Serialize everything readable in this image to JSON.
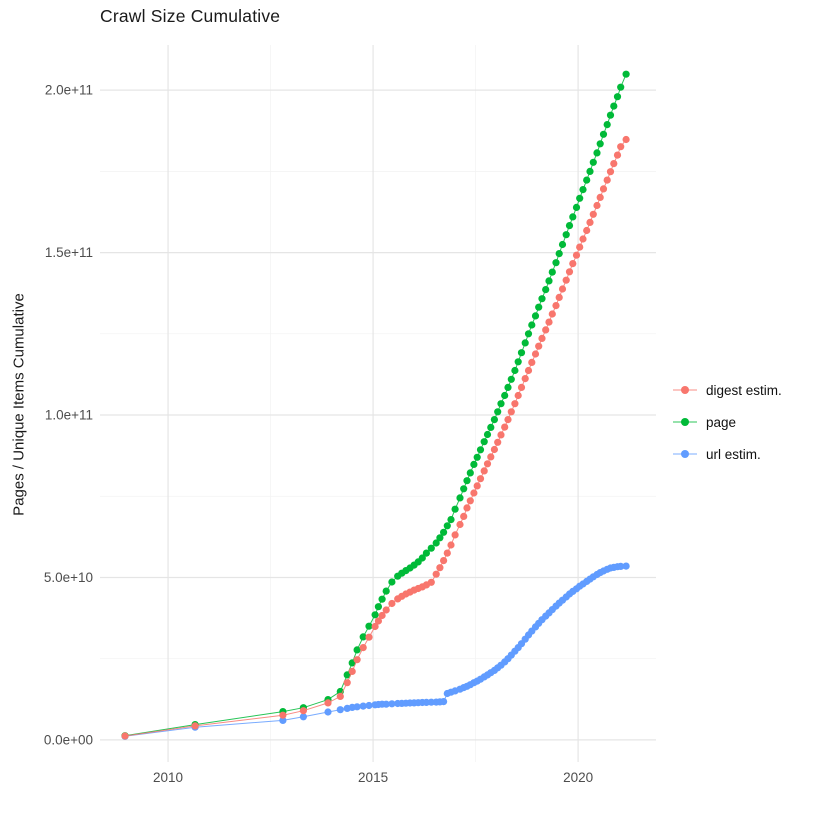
{
  "page": {
    "title": "Crawl Size Cumulative"
  },
  "colors": {
    "background": "#ffffff",
    "title_text": "#1a1a1a",
    "tick_label": "#4d4d4d",
    "grid_major": "#e5e5e5",
    "grid_minor": "#f2f2f2",
    "digest_estim": "#F8766D",
    "page_series": "#00BA38",
    "url_estim": "#619CFF"
  },
  "chart_data": {
    "type": "scatter",
    "title": "Crawl Size Cumulative",
    "xlabel": "",
    "ylabel": "Pages / Unique Items Cumulative",
    "value_unit": "items, stored here in billions (1e9); y axis shown in scientific notation",
    "grid": "on",
    "legend_position": "right",
    "xlim": [
      2008.34,
      2021.9
    ],
    "ylim_e9": [
      -6.8,
      213.9
    ],
    "x_major_ticks": [
      {
        "value": 2010,
        "label": "2010"
      },
      {
        "value": 2015,
        "label": "2015"
      },
      {
        "value": 2020,
        "label": "2020"
      }
    ],
    "x_minor_ticks": [
      2012.5,
      2017.5
    ],
    "y_major_ticks": [
      {
        "value_e9": 0,
        "label": "0.0e+00"
      },
      {
        "value_e9": 50,
        "label": "5.0e+10"
      },
      {
        "value_e9": 100,
        "label": "1.0e+11"
      },
      {
        "value_e9": 150,
        "label": "1.5e+11"
      },
      {
        "value_e9": 200,
        "label": "2.0e+11"
      }
    ],
    "y_minor_ticks_e9": [
      25,
      75,
      125,
      175
    ],
    "draw_order": [
      2,
      1,
      0
    ],
    "series": [
      {
        "name": "digest estim.",
        "color": "#F8766D",
        "points": [
          [
            2008.95,
            1.2
          ],
          [
            2010.66,
            4.3
          ],
          [
            2012.8,
            7.6
          ],
          [
            2013.3,
            9.0
          ],
          [
            2013.9,
            11.4
          ],
          [
            2014.2,
            13.4
          ],
          [
            2014.37,
            17.6
          ],
          [
            2014.49,
            21.1
          ],
          [
            2014.61,
            24.7
          ],
          [
            2014.76,
            28.4
          ],
          [
            2014.9,
            31.6
          ],
          [
            2015.05,
            34.9
          ],
          [
            2015.13,
            36.6
          ],
          [
            2015.22,
            38.3
          ],
          [
            2015.32,
            40.0
          ],
          [
            2015.46,
            42.0
          ],
          [
            2015.6,
            43.4
          ],
          [
            2015.7,
            44.2
          ],
          [
            2015.8,
            44.9
          ],
          [
            2015.9,
            45.5
          ],
          [
            2016.0,
            46.1
          ],
          [
            2016.1,
            46.6
          ],
          [
            2016.2,
            47.1
          ],
          [
            2016.3,
            47.7
          ],
          [
            2016.42,
            48.5
          ],
          [
            2016.54,
            51.0
          ],
          [
            2016.63,
            53.0
          ],
          [
            2016.72,
            55.2
          ],
          [
            2016.81,
            57.5
          ],
          [
            2016.9,
            60.0
          ],
          [
            2017.0,
            63.1
          ],
          [
            2017.12,
            66.3
          ],
          [
            2017.21,
            68.8
          ],
          [
            2017.29,
            71.4
          ],
          [
            2017.37,
            73.6
          ],
          [
            2017.46,
            76.0
          ],
          [
            2017.54,
            78.2
          ],
          [
            2017.62,
            80.4
          ],
          [
            2017.71,
            82.8
          ],
          [
            2017.79,
            85.0
          ],
          [
            2017.87,
            87.1
          ],
          [
            2017.96,
            89.4
          ],
          [
            2018.04,
            91.6
          ],
          [
            2018.12,
            93.9
          ],
          [
            2018.21,
            96.3
          ],
          [
            2018.29,
            98.6
          ],
          [
            2018.37,
            101.0
          ],
          [
            2018.46,
            103.5
          ],
          [
            2018.54,
            106.0
          ],
          [
            2018.62,
            108.5
          ],
          [
            2018.71,
            111.2
          ],
          [
            2018.79,
            113.7
          ],
          [
            2018.87,
            116.2
          ],
          [
            2018.96,
            118.8
          ],
          [
            2019.04,
            121.2
          ],
          [
            2019.12,
            123.6
          ],
          [
            2019.21,
            126.2
          ],
          [
            2019.29,
            128.6
          ],
          [
            2019.37,
            131.1
          ],
          [
            2019.46,
            133.7
          ],
          [
            2019.54,
            136.2
          ],
          [
            2019.62,
            138.8
          ],
          [
            2019.71,
            141.5
          ],
          [
            2019.79,
            144.1
          ],
          [
            2019.87,
            146.6
          ],
          [
            2019.96,
            149.2
          ],
          [
            2020.04,
            151.7
          ],
          [
            2020.12,
            154.2
          ],
          [
            2020.21,
            156.8
          ],
          [
            2020.29,
            159.3
          ],
          [
            2020.37,
            161.8
          ],
          [
            2020.46,
            164.5
          ],
          [
            2020.54,
            167.0
          ],
          [
            2020.62,
            169.6
          ],
          [
            2020.71,
            172.3
          ],
          [
            2020.79,
            174.9
          ],
          [
            2020.87,
            177.4
          ],
          [
            2020.96,
            180.0
          ],
          [
            2021.04,
            182.6
          ],
          [
            2021.17,
            184.8
          ]
        ]
      },
      {
        "name": "page",
        "color": "#00BA38",
        "points": [
          [
            2008.95,
            1.3
          ],
          [
            2010.66,
            4.7
          ],
          [
            2012.8,
            8.7
          ],
          [
            2013.3,
            9.9
          ],
          [
            2013.9,
            12.4
          ],
          [
            2014.2,
            14.9
          ],
          [
            2014.37,
            20.0
          ],
          [
            2014.49,
            23.7
          ],
          [
            2014.61,
            27.7
          ],
          [
            2014.76,
            31.7
          ],
          [
            2014.9,
            35.0
          ],
          [
            2015.05,
            38.5
          ],
          [
            2015.13,
            41.0
          ],
          [
            2015.22,
            43.3
          ],
          [
            2015.32,
            45.8
          ],
          [
            2015.46,
            48.6
          ],
          [
            2015.6,
            50.4
          ],
          [
            2015.7,
            51.3
          ],
          [
            2015.8,
            52.1
          ],
          [
            2015.9,
            52.9
          ],
          [
            2016.0,
            53.8
          ],
          [
            2016.1,
            54.8
          ],
          [
            2016.2,
            56.0
          ],
          [
            2016.3,
            57.5
          ],
          [
            2016.42,
            59.0
          ],
          [
            2016.54,
            60.6
          ],
          [
            2016.63,
            62.2
          ],
          [
            2016.72,
            63.9
          ],
          [
            2016.81,
            65.9
          ],
          [
            2016.9,
            67.8
          ],
          [
            2017.0,
            71.0
          ],
          [
            2017.12,
            74.5
          ],
          [
            2017.21,
            77.3
          ],
          [
            2017.29,
            79.8
          ],
          [
            2017.37,
            82.2
          ],
          [
            2017.46,
            84.8
          ],
          [
            2017.54,
            87.0
          ],
          [
            2017.62,
            89.3
          ],
          [
            2017.71,
            91.8
          ],
          [
            2017.79,
            94.0
          ],
          [
            2017.87,
            96.2
          ],
          [
            2017.96,
            98.6
          ],
          [
            2018.04,
            101.0
          ],
          [
            2018.12,
            103.5
          ],
          [
            2018.21,
            106.0
          ],
          [
            2018.29,
            108.5
          ],
          [
            2018.37,
            111.0
          ],
          [
            2018.46,
            113.7
          ],
          [
            2018.54,
            116.4
          ],
          [
            2018.62,
            119.2
          ],
          [
            2018.71,
            122.2
          ],
          [
            2018.79,
            125.0
          ],
          [
            2018.87,
            127.7
          ],
          [
            2018.96,
            130.5
          ],
          [
            2019.04,
            133.2
          ],
          [
            2019.12,
            135.8
          ],
          [
            2019.21,
            138.6
          ],
          [
            2019.29,
            141.3
          ],
          [
            2019.37,
            144.0
          ],
          [
            2019.46,
            146.9
          ],
          [
            2019.54,
            149.7
          ],
          [
            2019.62,
            152.5
          ],
          [
            2019.71,
            155.5
          ],
          [
            2019.79,
            158.3
          ],
          [
            2019.87,
            161.0
          ],
          [
            2019.96,
            163.9
          ],
          [
            2020.04,
            166.7
          ],
          [
            2020.12,
            169.4
          ],
          [
            2020.21,
            172.3
          ],
          [
            2020.29,
            175.0
          ],
          [
            2020.37,
            177.8
          ],
          [
            2020.46,
            180.7
          ],
          [
            2020.54,
            183.5
          ],
          [
            2020.62,
            186.4
          ],
          [
            2020.71,
            189.4
          ],
          [
            2020.79,
            192.3
          ],
          [
            2020.87,
            195.1
          ],
          [
            2020.96,
            198.0
          ],
          [
            2021.04,
            200.9
          ],
          [
            2021.17,
            204.9
          ]
        ]
      },
      {
        "name": "url estim.",
        "color": "#619CFF",
        "points": [
          [
            2008.95,
            1.1
          ],
          [
            2010.66,
            3.9
          ],
          [
            2012.8,
            6.0
          ],
          [
            2013.3,
            7.1
          ],
          [
            2013.9,
            8.6
          ],
          [
            2014.2,
            9.3
          ],
          [
            2014.37,
            9.7
          ],
          [
            2014.49,
            10.0
          ],
          [
            2014.61,
            10.2
          ],
          [
            2014.76,
            10.4
          ],
          [
            2014.9,
            10.6
          ],
          [
            2015.05,
            10.8
          ],
          [
            2015.13,
            10.9
          ],
          [
            2015.22,
            11.0
          ],
          [
            2015.32,
            11.0
          ],
          [
            2015.46,
            11.1
          ],
          [
            2015.6,
            11.2
          ],
          [
            2015.7,
            11.25
          ],
          [
            2015.8,
            11.3
          ],
          [
            2015.9,
            11.35
          ],
          [
            2016.0,
            11.4
          ],
          [
            2016.1,
            11.45
          ],
          [
            2016.2,
            11.5
          ],
          [
            2016.3,
            11.55
          ],
          [
            2016.42,
            11.6
          ],
          [
            2016.54,
            11.65
          ],
          [
            2016.63,
            11.7
          ],
          [
            2016.72,
            11.8
          ],
          [
            2016.81,
            14.3
          ],
          [
            2016.9,
            14.7
          ],
          [
            2017.0,
            15.1
          ],
          [
            2017.12,
            15.6
          ],
          [
            2017.21,
            16.1
          ],
          [
            2017.29,
            16.5
          ],
          [
            2017.37,
            17.0
          ],
          [
            2017.46,
            17.6
          ],
          [
            2017.54,
            18.1
          ],
          [
            2017.62,
            18.7
          ],
          [
            2017.71,
            19.4
          ],
          [
            2017.79,
            20.0
          ],
          [
            2017.87,
            20.7
          ],
          [
            2017.96,
            21.4
          ],
          [
            2018.04,
            22.2
          ],
          [
            2018.12,
            23.0
          ],
          [
            2018.21,
            24.0
          ],
          [
            2018.29,
            25.0
          ],
          [
            2018.37,
            26.1
          ],
          [
            2018.46,
            27.3
          ],
          [
            2018.54,
            28.4
          ],
          [
            2018.62,
            29.6
          ],
          [
            2018.71,
            31.0
          ],
          [
            2018.79,
            32.3
          ],
          [
            2018.87,
            33.5
          ],
          [
            2018.96,
            34.8
          ],
          [
            2019.04,
            35.9
          ],
          [
            2019.12,
            37.0
          ],
          [
            2019.21,
            38.1
          ],
          [
            2019.29,
            39.1
          ],
          [
            2019.37,
            40.1
          ],
          [
            2019.46,
            41.2
          ],
          [
            2019.54,
            42.1
          ],
          [
            2019.62,
            43.0
          ],
          [
            2019.71,
            44.0
          ],
          [
            2019.79,
            44.9
          ],
          [
            2019.87,
            45.7
          ],
          [
            2019.96,
            46.5
          ],
          [
            2020.04,
            47.3
          ],
          [
            2020.12,
            48.0
          ],
          [
            2020.21,
            48.8
          ],
          [
            2020.29,
            49.5
          ],
          [
            2020.37,
            50.2
          ],
          [
            2020.46,
            50.9
          ],
          [
            2020.54,
            51.5
          ],
          [
            2020.62,
            52.0
          ],
          [
            2020.71,
            52.5
          ],
          [
            2020.79,
            52.9
          ],
          [
            2020.87,
            53.1
          ],
          [
            2020.96,
            53.3
          ],
          [
            2021.04,
            53.4
          ],
          [
            2021.17,
            53.5
          ]
        ]
      }
    ]
  }
}
